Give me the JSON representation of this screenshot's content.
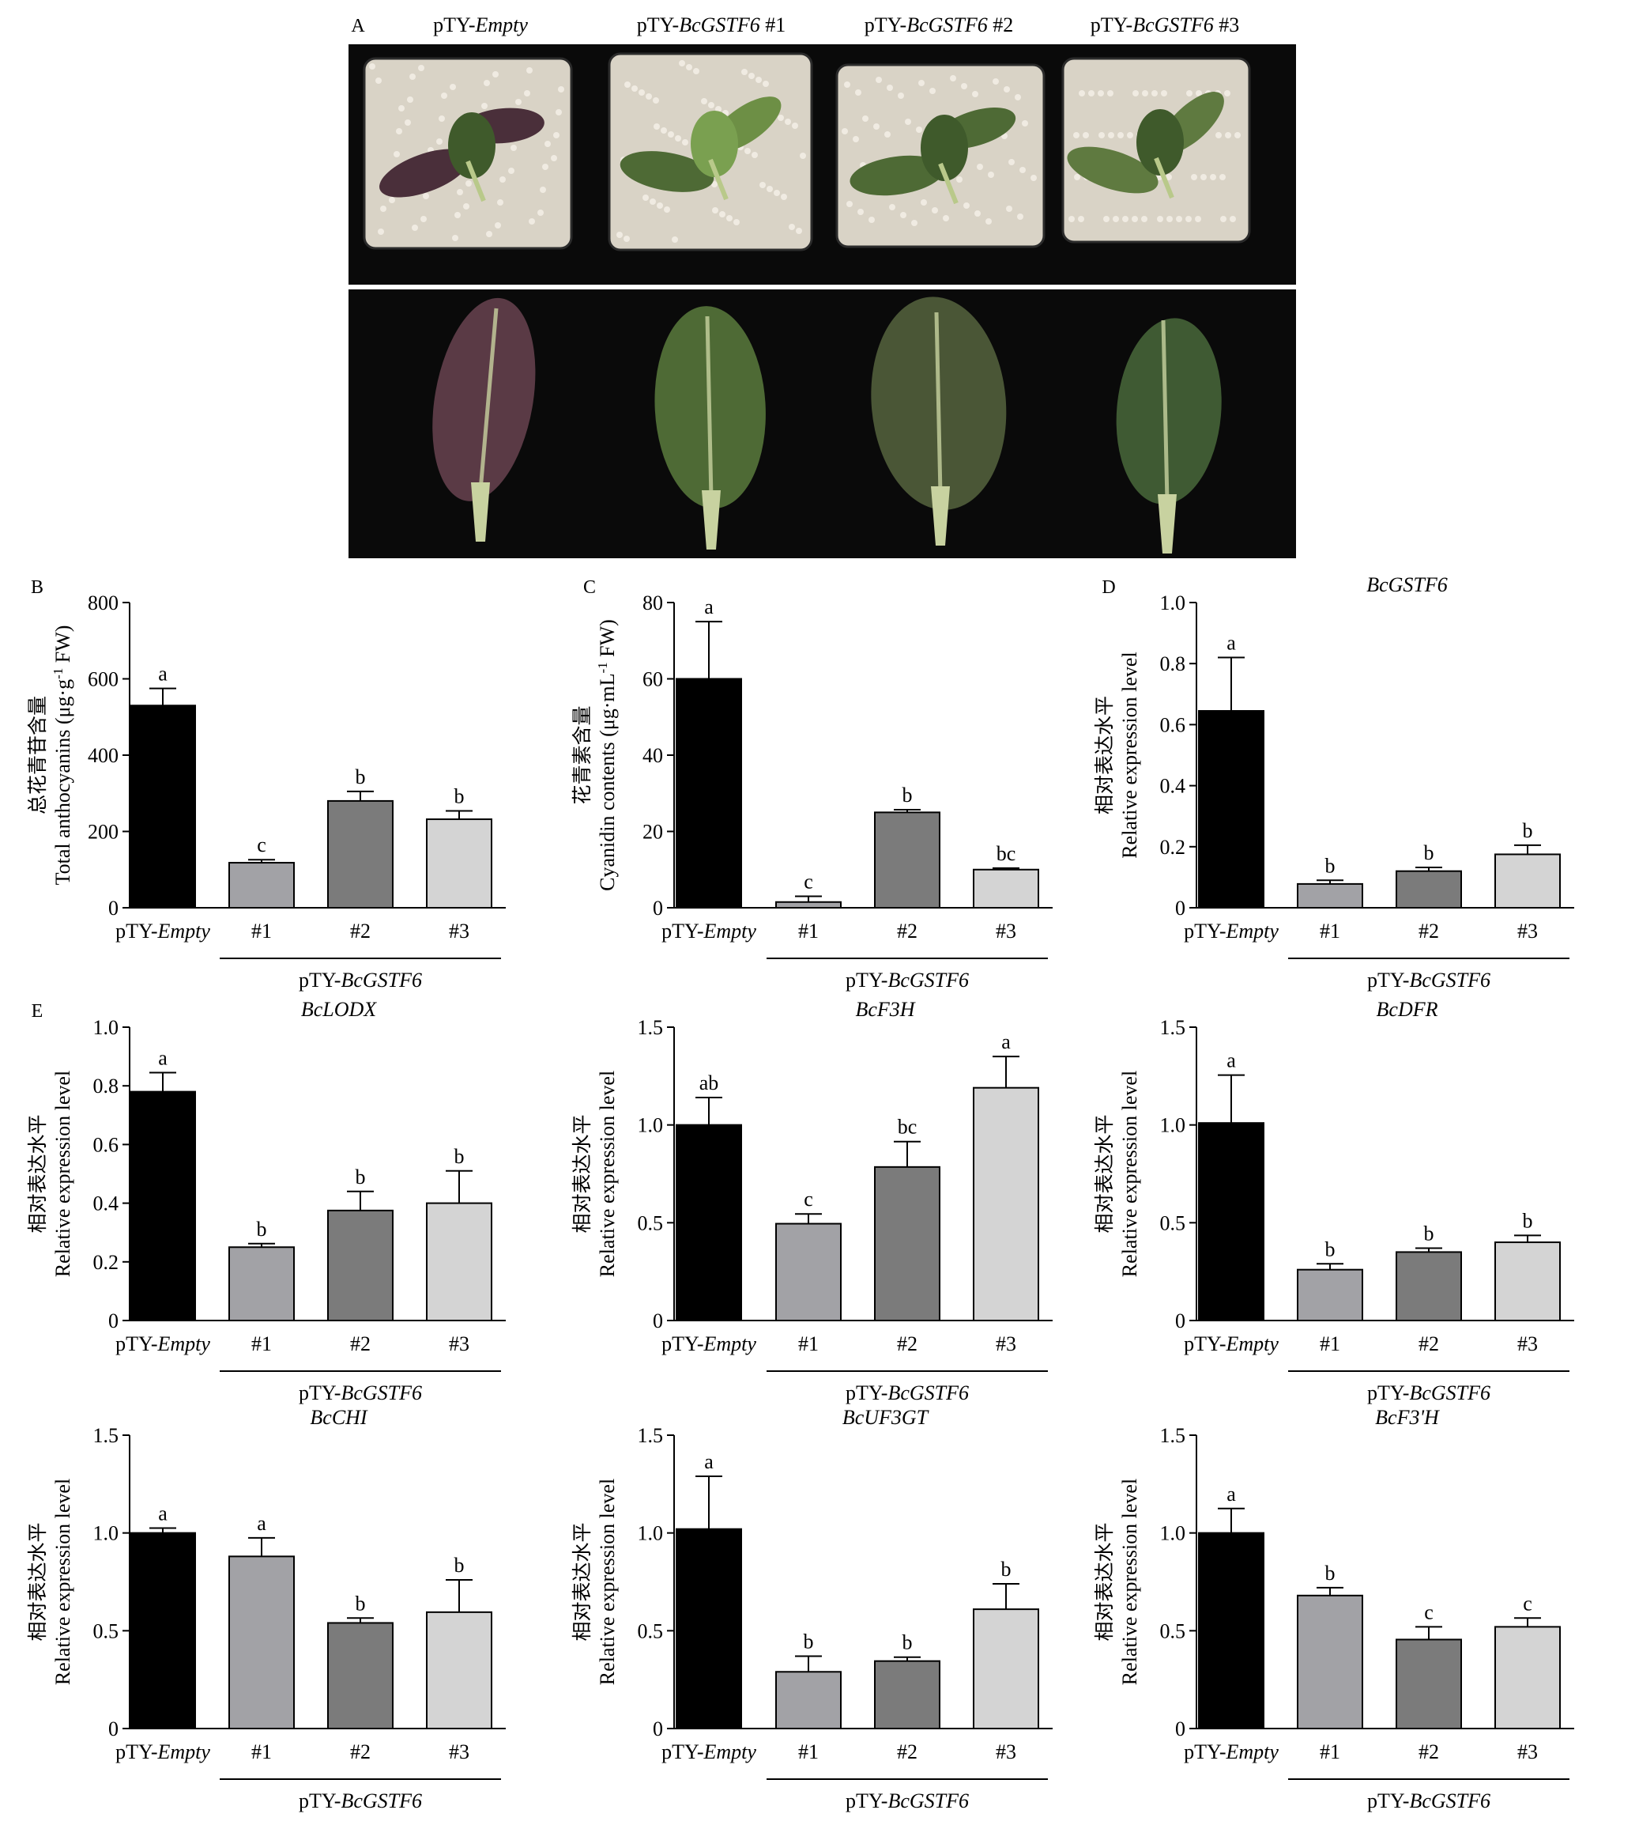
{
  "panel_a": {
    "letter": "A",
    "labels": [
      {
        "prefix": "pTY-",
        "gene": "Empty",
        "suffix": ""
      },
      {
        "prefix": "pTY-",
        "gene": "BcGSTF6",
        "suffix": " #1"
      },
      {
        "prefix": "pTY-",
        "gene": "BcGSTF6",
        "suffix": " #2"
      },
      {
        "prefix": "pTY-",
        "gene": "BcGSTF6",
        "suffix": " #3"
      }
    ],
    "colors": {
      "background": "#0a0a0a",
      "perlite": "#d9d3c6",
      "green_leaf": "#4e6a35",
      "purple_leaf": "#4a2f3a",
      "midrib": "#c8d2a0"
    }
  },
  "chart_data": [
    {
      "id": "B",
      "letter": "B",
      "type": "bar",
      "title": "",
      "title_italic": false,
      "ylabel_cn": "总花青苷含量",
      "ylabel_en_prefix": "Total anthocyanins (μg·g",
      "ylabel_en_sup": "-1",
      "ylabel_en_suffix": " FW)",
      "ylim": [
        0,
        800
      ],
      "yticks": [
        "0",
        "200",
        "400",
        "600",
        "800"
      ],
      "categories": [
        "pTY-Empty",
        "#1",
        "#2",
        "#3"
      ],
      "values": [
        530,
        118,
        280,
        232
      ],
      "errors": [
        45,
        8,
        25,
        22
      ],
      "letters": [
        "a",
        "c",
        "b",
        "b"
      ],
      "group_label": "pTY-BcGSTF6"
    },
    {
      "id": "C",
      "letter": "C",
      "type": "bar",
      "title": "",
      "title_italic": false,
      "ylabel_cn": "花青素含量",
      "ylabel_en_prefix": "Cyanidin contents (μg·mL",
      "ylabel_en_sup": "-1",
      "ylabel_en_suffix": " FW)",
      "ylim": [
        0,
        80
      ],
      "yticks": [
        "0",
        "20",
        "40",
        "60",
        "80"
      ],
      "categories": [
        "pTY-Empty",
        "#1",
        "#2",
        "#3"
      ],
      "values": [
        60,
        1.5,
        25,
        10
      ],
      "errors": [
        15,
        1.5,
        0.7,
        0.4
      ],
      "letters": [
        "a",
        "c",
        "b",
        "bc"
      ],
      "group_label": "pTY-BcGSTF6"
    },
    {
      "id": "D",
      "letter": "D",
      "type": "bar",
      "title": "BcGSTF6",
      "title_italic": true,
      "ylabel_cn": "相对表达水平",
      "ylabel_en_prefix": "Relative expression level",
      "ylabel_en_sup": "",
      "ylabel_en_suffix": "",
      "ylim": [
        0,
        1.0
      ],
      "yticks": [
        "0",
        "0.2",
        "0.4",
        "0.6",
        "0.8",
        "1.0"
      ],
      "categories": [
        "pTY-Empty",
        "#1",
        "#2",
        "#3"
      ],
      "values": [
        0.645,
        0.078,
        0.12,
        0.175
      ],
      "errors": [
        0.175,
        0.012,
        0.012,
        0.03
      ],
      "letters": [
        "a",
        "b",
        "b",
        "b"
      ],
      "group_label": "pTY-BcGSTF6"
    },
    {
      "id": "E1",
      "letter": "E",
      "type": "bar",
      "title": "BcLODX",
      "title_italic": true,
      "ylabel_cn": "相对表达水平",
      "ylabel_en_prefix": "Relative expression level",
      "ylabel_en_sup": "",
      "ylabel_en_suffix": "",
      "ylim": [
        0,
        1.0
      ],
      "yticks": [
        "0",
        "0.2",
        "0.4",
        "0.6",
        "0.8",
        "1.0"
      ],
      "categories": [
        "pTY-Empty",
        "#1",
        "#2",
        "#3"
      ],
      "values": [
        0.78,
        0.25,
        0.375,
        0.4
      ],
      "errors": [
        0.065,
        0.012,
        0.065,
        0.11
      ],
      "letters": [
        "a",
        "b",
        "b",
        "b"
      ],
      "group_label": "pTY-BcGSTF6"
    },
    {
      "id": "E2",
      "letter": "",
      "type": "bar",
      "title": "BcF3H",
      "title_italic": true,
      "ylabel_cn": "相对表达水平",
      "ylabel_en_prefix": "Relative expression level",
      "ylabel_en_sup": "",
      "ylabel_en_suffix": "",
      "ylim": [
        0,
        1.5
      ],
      "yticks": [
        "0",
        "0.5",
        "1.0",
        "1.5"
      ],
      "categories": [
        "pTY-Empty",
        "#1",
        "#2",
        "#3"
      ],
      "values": [
        1.0,
        0.495,
        0.785,
        1.19
      ],
      "errors": [
        0.14,
        0.05,
        0.13,
        0.16
      ],
      "letters": [
        "ab",
        "c",
        "bc",
        "a"
      ],
      "group_label": "pTY-BcGSTF6"
    },
    {
      "id": "E3",
      "letter": "",
      "type": "bar",
      "title": "BcDFR",
      "title_italic": true,
      "ylabel_cn": "相对表达水平",
      "ylabel_en_prefix": "Relative expression level",
      "ylabel_en_sup": "",
      "ylabel_en_suffix": "",
      "ylim": [
        0,
        1.5
      ],
      "yticks": [
        "0",
        "0.5",
        "1.0",
        "1.5"
      ],
      "categories": [
        "pTY-Empty",
        "#1",
        "#2",
        "#3"
      ],
      "values": [
        1.01,
        0.26,
        0.35,
        0.4
      ],
      "errors": [
        0.245,
        0.03,
        0.02,
        0.035
      ],
      "letters": [
        "a",
        "b",
        "b",
        "b"
      ],
      "group_label": "pTY-BcGSTF6"
    },
    {
      "id": "E4",
      "letter": "",
      "type": "bar",
      "title": "BcCHI",
      "title_italic": true,
      "ylabel_cn": "相对表达水平",
      "ylabel_en_prefix": "Relative expression level",
      "ylabel_en_sup": "",
      "ylabel_en_suffix": "",
      "ylim": [
        0,
        1.5
      ],
      "yticks": [
        "0",
        "0.5",
        "1.0",
        "1.5"
      ],
      "categories": [
        "pTY-Empty",
        "#1",
        "#2",
        "#3"
      ],
      "values": [
        1.0,
        0.88,
        0.54,
        0.595
      ],
      "errors": [
        0.025,
        0.095,
        0.025,
        0.165
      ],
      "letters": [
        "a",
        "a",
        "b",
        "b"
      ],
      "group_label": "pTY-BcGSTF6"
    },
    {
      "id": "E5",
      "letter": "",
      "type": "bar",
      "title": "BcUF3GT",
      "title_italic": true,
      "ylabel_cn": "相对表达水平",
      "ylabel_en_prefix": "Relative expression level",
      "ylabel_en_sup": "",
      "ylabel_en_suffix": "",
      "ylim": [
        0,
        1.5
      ],
      "yticks": [
        "0",
        "0.5",
        "1.0",
        "1.5"
      ],
      "categories": [
        "pTY-Empty",
        "#1",
        "#2",
        "#3"
      ],
      "values": [
        1.02,
        0.29,
        0.345,
        0.61
      ],
      "errors": [
        0.27,
        0.08,
        0.02,
        0.13
      ],
      "letters": [
        "a",
        "b",
        "b",
        "b"
      ],
      "group_label": "pTY-BcGSTF6"
    },
    {
      "id": "E6",
      "letter": "",
      "type": "bar",
      "title": "BcF3'H",
      "title_italic": true,
      "ylabel_cn": "相对表达水平",
      "ylabel_en_prefix": "Relative expression level",
      "ylabel_en_sup": "",
      "ylabel_en_suffix": "",
      "ylim": [
        0,
        1.5
      ],
      "yticks": [
        "0",
        "0.5",
        "1.0",
        "1.5"
      ],
      "categories": [
        "pTY-Empty",
        "#1",
        "#2",
        "#3"
      ],
      "values": [
        1.0,
        0.68,
        0.455,
        0.52
      ],
      "errors": [
        0.125,
        0.04,
        0.065,
        0.045
      ],
      "letters": [
        "a",
        "b",
        "c",
        "c"
      ],
      "group_label": "pTY-BcGSTF6"
    }
  ],
  "bar_colors": [
    "#000000",
    "#a2a2a6",
    "#7b7b7b",
    "#d4d4d4"
  ],
  "bar_stroke": "#000000"
}
